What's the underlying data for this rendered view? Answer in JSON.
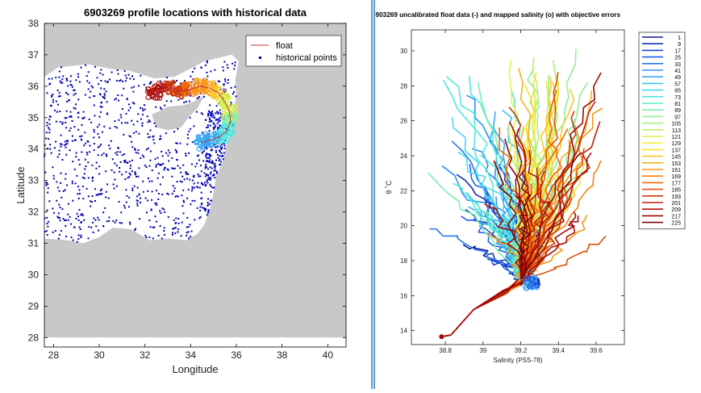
{
  "chart_data": [
    {
      "type": "scatter",
      "title": "6903269 profile locations with historical data",
      "xlabel": "Longitude",
      "ylabel": "Latitude",
      "xlim": [
        27.6,
        40.8
      ],
      "ylim": [
        27.7,
        38
      ],
      "xticks": [
        28,
        30,
        32,
        34,
        36,
        38,
        40
      ],
      "yticks": [
        28,
        29,
        30,
        31,
        32,
        33,
        34,
        35,
        36,
        37,
        38
      ],
      "legend": {
        "position": "top-right",
        "entries": [
          "float",
          "historical points"
        ]
      },
      "colors": {
        "background": "#c8c8c8",
        "land": "#ffffff",
        "historical": "#0000b0",
        "float_line": "#d03030"
      },
      "float_track": [
        {
          "lon": 32.4,
          "lat": 35.82
        },
        {
          "lon": 32.8,
          "lat": 35.9
        },
        {
          "lon": 33.2,
          "lat": 35.95
        },
        {
          "lon": 33.6,
          "lat": 35.85
        },
        {
          "lon": 34.0,
          "lat": 35.9
        },
        {
          "lon": 34.4,
          "lat": 36.0
        },
        {
          "lon": 34.8,
          "lat": 35.95
        },
        {
          "lon": 35.2,
          "lat": 35.8
        },
        {
          "lon": 35.5,
          "lat": 35.5
        },
        {
          "lon": 35.7,
          "lat": 35.2
        },
        {
          "lon": 35.75,
          "lat": 34.9
        },
        {
          "lon": 35.6,
          "lat": 34.6
        },
        {
          "lon": 35.3,
          "lat": 34.4
        },
        {
          "lon": 34.9,
          "lat": 34.3
        },
        {
          "lon": 34.5,
          "lat": 34.2
        }
      ]
    },
    {
      "type": "line",
      "title": "6903269 uncalibrated float data (-) and mapped salinity (o) with objective errors",
      "xlabel": "Salinity (PSS-78)",
      "ylabel": "θ ˚C",
      "xlim": [
        38.62,
        39.75
      ],
      "ylim": [
        13.2,
        31.2
      ],
      "xticks": [
        38.8,
        39,
        39.2,
        39.4,
        39.6
      ],
      "yticks": [
        14,
        16,
        18,
        20,
        22,
        24,
        26,
        28,
        30
      ],
      "legend": {
        "position": "outside-right",
        "entries": [
          "1",
          "9",
          "17",
          "25",
          "33",
          "41",
          "49",
          "57",
          "65",
          "73",
          "81",
          "89",
          "97",
          "105",
          "113",
          "121",
          "129",
          "137",
          "145",
          "153",
          "161",
          "169",
          "177",
          "185",
          "193",
          "201",
          "209",
          "217",
          "225"
        ]
      },
      "legend_colors": [
        "#0a1a8c",
        "#1030b8",
        "#1848d8",
        "#2060e8",
        "#2878f0",
        "#3090f0",
        "#38a8f0",
        "#40c0f0",
        "#48d8f0",
        "#50e8e0",
        "#60f0c8",
        "#78f0b0",
        "#90f098",
        "#a8f080",
        "#c0f068",
        "#d8f050",
        "#f0f040",
        "#f8e030",
        "#f8c828",
        "#f8b020",
        "#f89818",
        "#f88010",
        "#f06808",
        "#e05008",
        "#d03808",
        "#c02008",
        "#b01008",
        "#a00808",
        "#800404"
      ],
      "convergence_point": {
        "salinity": 39.2,
        "theta": 16.6
      },
      "deep_point": {
        "salinity": 38.78,
        "theta": 13.65
      }
    }
  ]
}
